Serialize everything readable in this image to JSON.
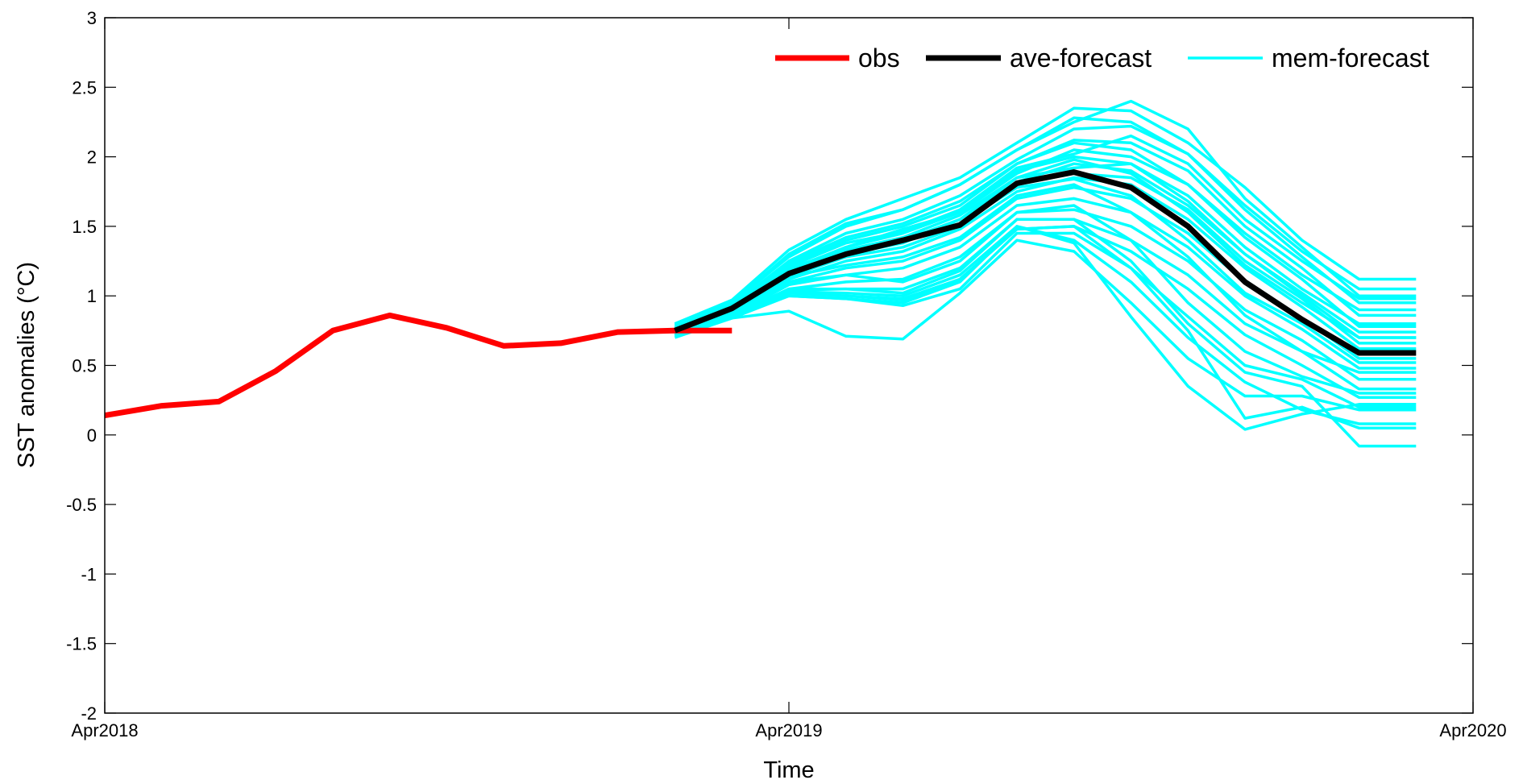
{
  "chart_data": {
    "type": "line",
    "xlabel": "Time",
    "ylabel": "SST anomalies (°C)",
    "ylim": [
      -2,
      3
    ],
    "yticks": [
      "-2",
      "-1.5",
      "-1",
      "-0.5",
      "0",
      "0.5",
      "1",
      "1.5",
      "2",
      "2.5",
      "3"
    ],
    "xlim": [
      "2018-04",
      "2020-04"
    ],
    "xticks": [
      {
        "date": "2018-04",
        "label": "Apr2018"
      },
      {
        "date": "2019-04",
        "label": "Apr2019"
      },
      {
        "date": "2020-04",
        "label": "Apr2020"
      }
    ],
    "legend": {
      "position": "top-right"
    },
    "series": [
      {
        "name": "obs",
        "color": "#ff0000",
        "x": [
          "2018-04",
          "2018-05",
          "2018-06",
          "2018-07",
          "2018-08",
          "2018-09",
          "2018-10",
          "2018-11",
          "2018-12",
          "2019-01",
          "2019-02",
          "2019-03"
        ],
        "y": [
          0.14,
          0.21,
          0.24,
          0.46,
          0.75,
          0.86,
          0.77,
          0.64,
          0.66,
          0.74,
          0.75,
          0.75
        ]
      },
      {
        "name": "ave-forecast",
        "color": "#000000",
        "x": [
          "2019-02",
          "2019-03",
          "2019-04",
          "2019-05",
          "2019-06",
          "2019-07",
          "2019-08",
          "2019-09",
          "2019-10",
          "2019-11",
          "2019-12",
          "2020-01",
          "2020-02",
          "2020-03"
        ],
        "y": [
          0.75,
          0.91,
          1.16,
          1.3,
          1.4,
          1.51,
          1.81,
          1.89,
          1.78,
          1.5,
          1.1,
          0.83,
          0.59,
          0.59
        ]
      },
      {
        "name": "mem-forecast",
        "color": "#00ffff",
        "x": [
          "2019-02",
          "2019-03",
          "2019-04",
          "2019-05",
          "2019-06",
          "2019-07",
          "2019-08",
          "2019-09",
          "2019-10",
          "2019-11",
          "2019-12",
          "2020-01",
          "2020-02",
          "2020-03"
        ],
        "members": [
          [
            0.8,
            0.97,
            1.33,
            1.55,
            1.7,
            1.85,
            2.1,
            2.35,
            2.33,
            2.1,
            1.78,
            1.4,
            1.12,
            1.12
          ],
          [
            0.78,
            0.95,
            1.28,
            1.5,
            1.62,
            1.8,
            2.05,
            2.25,
            2.4,
            2.2,
            1.7,
            1.35,
            1.0,
            1.0
          ],
          [
            0.76,
            0.93,
            1.25,
            1.45,
            1.55,
            1.72,
            1.98,
            2.2,
            2.22,
            2.02,
            1.62,
            1.28,
            0.95,
            0.95
          ],
          [
            0.75,
            0.92,
            1.22,
            1.4,
            1.5,
            1.65,
            1.95,
            2.12,
            2.1,
            1.9,
            1.5,
            1.2,
            0.86,
            0.86
          ],
          [
            0.74,
            0.9,
            1.18,
            1.35,
            1.45,
            1.6,
            1.88,
            2.05,
            2.0,
            1.8,
            1.42,
            1.12,
            0.78,
            0.78
          ],
          [
            0.75,
            0.9,
            1.15,
            1.3,
            1.38,
            1.55,
            1.82,
            1.95,
            1.9,
            1.65,
            1.3,
            1.0,
            0.7,
            0.7
          ],
          [
            0.74,
            0.88,
            1.12,
            1.25,
            1.32,
            1.48,
            1.75,
            1.85,
            1.8,
            1.55,
            1.2,
            0.92,
            0.62,
            0.62
          ],
          [
            0.73,
            0.87,
            1.1,
            1.2,
            1.25,
            1.4,
            1.7,
            1.78,
            1.7,
            1.45,
            1.1,
            0.84,
            0.55,
            0.55
          ],
          [
            0.73,
            0.86,
            1.08,
            1.15,
            1.2,
            1.35,
            1.65,
            1.7,
            1.6,
            1.35,
            1.0,
            0.76,
            0.48,
            0.48
          ],
          [
            0.72,
            0.85,
            1.05,
            1.1,
            1.12,
            1.28,
            1.6,
            1.62,
            1.5,
            1.25,
            0.9,
            0.68,
            0.4,
            0.4
          ],
          [
            0.72,
            0.85,
            1.04,
            1.05,
            1.05,
            1.2,
            1.55,
            1.55,
            1.4,
            1.15,
            0.8,
            0.6,
            0.33,
            0.33
          ],
          [
            0.71,
            0.84,
            1.02,
            1.0,
            0.98,
            1.12,
            1.48,
            1.5,
            1.32,
            1.05,
            0.72,
            0.5,
            0.27,
            0.27
          ],
          [
            0.71,
            0.84,
            1.0,
            0.98,
            0.93,
            1.05,
            1.45,
            1.45,
            1.2,
            0.85,
            0.5,
            0.4,
            0.2,
            0.2
          ],
          [
            0.7,
            0.84,
            0.89,
            0.71,
            0.69,
            1.02,
            1.4,
            1.32,
            0.95,
            0.55,
            0.28,
            0.28,
            0.18,
            0.18
          ],
          [
            0.72,
            0.85,
            1.0,
            0.98,
            0.95,
            1.1,
            1.5,
            1.4,
            1.1,
            0.7,
            0.38,
            0.18,
            0.08,
            0.08
          ],
          [
            0.73,
            0.86,
            1.03,
            1.02,
            1.0,
            1.15,
            1.5,
            1.38,
            0.85,
            0.35,
            0.04,
            0.15,
            0.22,
            0.22
          ],
          [
            0.72,
            0.85,
            1.02,
            1.0,
            0.97,
            1.12,
            1.48,
            1.5,
            1.2,
            0.75,
            0.12,
            0.2,
            0.05,
            0.05
          ],
          [
            0.73,
            0.86,
            1.05,
            1.05,
            1.02,
            1.18,
            1.55,
            1.55,
            1.25,
            0.8,
            0.45,
            0.35,
            -0.08,
            -0.08
          ],
          [
            0.74,
            0.88,
            1.1,
            1.15,
            1.1,
            1.25,
            1.6,
            1.65,
            1.4,
            0.95,
            0.6,
            0.42,
            0.3,
            0.3
          ],
          [
            0.75,
            0.89,
            1.14,
            1.22,
            1.28,
            1.42,
            1.72,
            1.8,
            1.6,
            1.28,
            0.86,
            0.6,
            0.45,
            0.45
          ],
          [
            0.76,
            0.91,
            1.2,
            1.33,
            1.42,
            1.58,
            1.85,
            1.98,
            1.88,
            1.6,
            1.22,
            0.95,
            0.7,
            0.7
          ],
          [
            0.77,
            0.93,
            1.24,
            1.42,
            1.52,
            1.68,
            1.95,
            2.1,
            2.05,
            1.8,
            1.45,
            1.15,
            0.9,
            0.9
          ],
          [
            0.79,
            0.95,
            1.3,
            1.52,
            1.62,
            1.8,
            2.05,
            2.28,
            2.25,
            2.02,
            1.65,
            1.32,
            1.05,
            1.05
          ],
          [
            0.76,
            0.92,
            1.21,
            1.38,
            1.46,
            1.62,
            1.92,
            2.02,
            2.15,
            1.95,
            1.55,
            1.25,
            0.98,
            0.98
          ],
          [
            0.75,
            0.9,
            1.17,
            1.32,
            1.4,
            1.55,
            1.85,
            1.92,
            1.95,
            1.72,
            1.35,
            1.05,
            0.8,
            0.8
          ],
          [
            0.74,
            0.89,
            1.14,
            1.28,
            1.35,
            1.5,
            1.8,
            1.88,
            1.85,
            1.62,
            1.25,
            0.98,
            0.66,
            0.66
          ],
          [
            0.75,
            0.91,
            1.16,
            1.3,
            1.42,
            1.52,
            1.78,
            1.84,
            1.72,
            1.4,
            1.02,
            0.8,
            0.52,
            0.52
          ],
          [
            0.76,
            0.92,
            1.19,
            1.35,
            1.48,
            1.6,
            1.9,
            2.0,
            1.95,
            1.68,
            1.3,
            1.02,
            0.74,
            0.74
          ]
        ]
      }
    ]
  }
}
